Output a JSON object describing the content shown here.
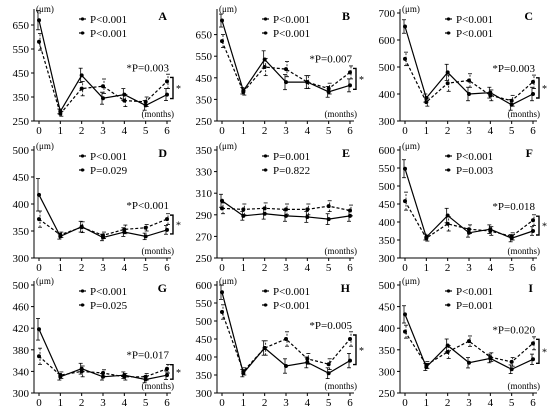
{
  "chart_data": [
    {
      "panel": "A",
      "type": "line",
      "ylabel": "(μm)",
      "xlabel": "(months)",
      "x": [
        0,
        1,
        2,
        3,
        4,
        5,
        6
      ],
      "yticks": [
        250,
        350,
        450,
        550,
        650
      ],
      "ylim": [
        250,
        700
      ],
      "legend": [
        "P<0.001",
        "P<0.001"
      ],
      "annotation": "*P=0.003",
      "sig_mark": "*",
      "series": [
        {
          "style": "solid",
          "values": [
            670,
            290,
            440,
            345,
            360,
            315,
            360
          ],
          "err": [
            40,
            10,
            30,
            25,
            25,
            20,
            25
          ]
        },
        {
          "style": "dashed",
          "values": [
            580,
            280,
            385,
            395,
            335,
            330,
            415
          ],
          "err": [
            35,
            10,
            30,
            30,
            25,
            20,
            30
          ]
        }
      ]
    },
    {
      "panel": "B",
      "type": "line",
      "ylabel": "(μm)",
      "xlabel": "(months)",
      "x": [
        0,
        1,
        2,
        3,
        4,
        5,
        6
      ],
      "yticks": [
        250,
        350,
        450,
        550,
        650
      ],
      "ylim": [
        250,
        750
      ],
      "legend": [
        "P<0.001",
        "P<0.001"
      ],
      "annotation": "*P=0.007",
      "sig_mark": "*",
      "series": [
        {
          "style": "solid",
          "values": [
            715,
            390,
            535,
            430,
            430,
            385,
            415
          ],
          "err": [
            30,
            15,
            40,
            35,
            30,
            25,
            30
          ]
        },
        {
          "style": "dashed",
          "values": [
            620,
            385,
            500,
            490,
            430,
            400,
            475
          ],
          "err": [
            30,
            15,
            40,
            35,
            30,
            25,
            30
          ]
        }
      ]
    },
    {
      "panel": "C",
      "type": "line",
      "ylabel": "(μm)",
      "xlabel": "(months)",
      "x": [
        0,
        1,
        2,
        3,
        4,
        5,
        6
      ],
      "yticks": [
        300,
        400,
        500,
        600,
        700
      ],
      "ylim": [
        300,
        700
      ],
      "legend": [
        "P<0.001",
        "P<0.001"
      ],
      "annotation": "*P=0.003",
      "sig_mark": "*",
      "series": [
        {
          "style": "solid",
          "values": [
            650,
            385,
            480,
            400,
            405,
            360,
            400
          ],
          "err": [
            25,
            15,
            30,
            25,
            20,
            20,
            25
          ]
        },
        {
          "style": "dashed",
          "values": [
            530,
            370,
            440,
            450,
            395,
            375,
            445
          ],
          "err": [
            25,
            15,
            30,
            25,
            20,
            20,
            25
          ]
        }
      ]
    },
    {
      "panel": "D",
      "type": "line",
      "ylabel": "(μm)",
      "xlabel": "(months)",
      "x": [
        0,
        1,
        2,
        3,
        4,
        5,
        6
      ],
      "yticks": [
        300,
        350,
        400,
        450,
        500
      ],
      "ylim": [
        300,
        500
      ],
      "legend": [
        "P<0.001",
        "P=0.029"
      ],
      "annotation": "*P<0.001",
      "sig_mark": "*",
      "series": [
        {
          "style": "solid",
          "values": [
            417,
            340,
            358,
            338,
            348,
            340,
            352
          ],
          "err": [
            30,
            5,
            10,
            6,
            8,
            6,
            8
          ]
        },
        {
          "style": "dashed",
          "values": [
            372,
            343,
            357,
            342,
            353,
            356,
            372
          ],
          "err": [
            15,
            5,
            10,
            6,
            8,
            6,
            10
          ]
        }
      ]
    },
    {
      "panel": "E",
      "type": "line",
      "ylabel": "(μm)",
      "xlabel": "(months)",
      "x": [
        0,
        1,
        2,
        3,
        4,
        5,
        6
      ],
      "yticks": [
        250,
        270,
        290,
        310,
        330,
        350
      ],
      "ylim": [
        250,
        350
      ],
      "legend": [
        "P=0.001",
        "P=0.822"
      ],
      "annotation": "",
      "sig_mark": "",
      "series": [
        {
          "style": "solid",
          "values": [
            303,
            289,
            291,
            289,
            288,
            286,
            289
          ],
          "err": [
            6,
            4,
            5,
            5,
            5,
            5,
            5
          ]
        },
        {
          "style": "dashed",
          "values": [
            296,
            295,
            296,
            295,
            295,
            298,
            294
          ],
          "err": [
            5,
            5,
            5,
            5,
            5,
            5,
            5
          ]
        }
      ]
    },
    {
      "panel": "F",
      "type": "line",
      "ylabel": "(μm)",
      "xlabel": "(months)",
      "x": [
        0,
        1,
        2,
        3,
        4,
        5,
        6
      ],
      "yticks": [
        300,
        350,
        400,
        450,
        500,
        550,
        600
      ],
      "ylim": [
        300,
        600
      ],
      "legend": [
        "P<0.001",
        "P=0.003"
      ],
      "annotation": "*P=0.018",
      "sig_mark": "*",
      "series": [
        {
          "style": "solid",
          "values": [
            548,
            358,
            418,
            370,
            380,
            355,
            375
          ],
          "err": [
            25,
            8,
            20,
            12,
            12,
            10,
            12
          ]
        },
        {
          "style": "dashed",
          "values": [
            458,
            355,
            395,
            380,
            375,
            360,
            405
          ],
          "err": [
            25,
            8,
            20,
            12,
            12,
            10,
            15
          ]
        }
      ]
    },
    {
      "panel": "G",
      "type": "line",
      "ylabel": "(μm)",
      "xlabel": "(months)",
      "x": [
        0,
        1,
        2,
        3,
        4,
        5,
        6
      ],
      "yticks": [
        300,
        340,
        380,
        420,
        460,
        500
      ],
      "ylim": [
        300,
        500
      ],
      "legend": [
        "P<0.001",
        "P=0.025"
      ],
      "annotation": "*P=0.017",
      "sig_mark": "*",
      "series": [
        {
          "style": "solid",
          "values": [
            418,
            330,
            345,
            330,
            333,
            325,
            333
          ],
          "err": [
            20,
            6,
            10,
            6,
            6,
            6,
            8
          ]
        },
        {
          "style": "dashed",
          "values": [
            368,
            333,
            340,
            337,
            330,
            330,
            345
          ],
          "err": [
            15,
            6,
            10,
            6,
            6,
            6,
            8
          ]
        }
      ]
    },
    {
      "panel": "H",
      "type": "line",
      "ylabel": "(μm)",
      "xlabel": "(months)",
      "x": [
        0,
        1,
        2,
        3,
        4,
        5,
        6
      ],
      "yticks": [
        300,
        350,
        400,
        450,
        500,
        550,
        600
      ],
      "ylim": [
        300,
        600
      ],
      "legend": [
        "P<0.001",
        "P<0.001"
      ],
      "annotation": "*P=0.005",
      "sig_mark": "*",
      "series": [
        {
          "style": "solid",
          "values": [
            580,
            355,
            425,
            375,
            385,
            355,
            390
          ],
          "err": [
            20,
            10,
            20,
            20,
            15,
            15,
            20
          ]
        },
        {
          "style": "dashed",
          "values": [
            525,
            360,
            425,
            450,
            395,
            380,
            450
          ],
          "err": [
            20,
            10,
            20,
            20,
            15,
            15,
            20
          ]
        }
      ]
    },
    {
      "panel": "I",
      "type": "line",
      "ylabel": "(μm)",
      "xlabel": "(months)",
      "x": [
        0,
        1,
        2,
        3,
        4,
        5,
        6
      ],
      "yticks": [
        250,
        300,
        350,
        400,
        450,
        500
      ],
      "ylim": [
        250,
        500
      ],
      "legend": [
        "P<0.001",
        "P=0.001"
      ],
      "annotation": "*P=0.020",
      "sig_mark": "*",
      "series": [
        {
          "style": "solid",
          "values": [
            432,
            310,
            360,
            320,
            330,
            305,
            328
          ],
          "err": [
            20,
            8,
            15,
            12,
            10,
            10,
            12
          ]
        },
        {
          "style": "dashed",
          "values": [
            392,
            315,
            345,
            370,
            333,
            322,
            365
          ],
          "err": [
            15,
            8,
            15,
            12,
            10,
            10,
            15
          ]
        }
      ]
    }
  ]
}
